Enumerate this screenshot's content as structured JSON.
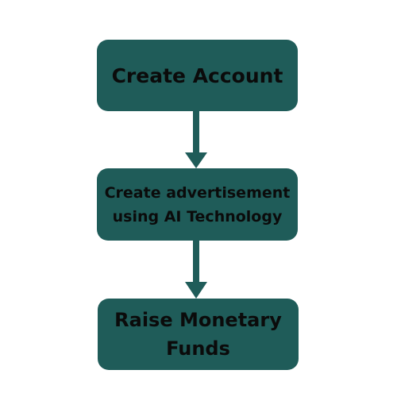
{
  "colors": {
    "node_fill": "#1f5c59",
    "arrow": "#1f5c59",
    "text": "#0b0b0b",
    "background": "#ffffff"
  },
  "flowchart": {
    "steps": [
      {
        "label": "Create Account"
      },
      {
        "label": "Create advertisement\nusing AI Technology"
      },
      {
        "label": "Raise Monetary\nFunds"
      }
    ],
    "connectors": [
      {
        "from": 0,
        "to": 1,
        "direction": "down"
      },
      {
        "from": 1,
        "to": 2,
        "direction": "down"
      }
    ]
  }
}
